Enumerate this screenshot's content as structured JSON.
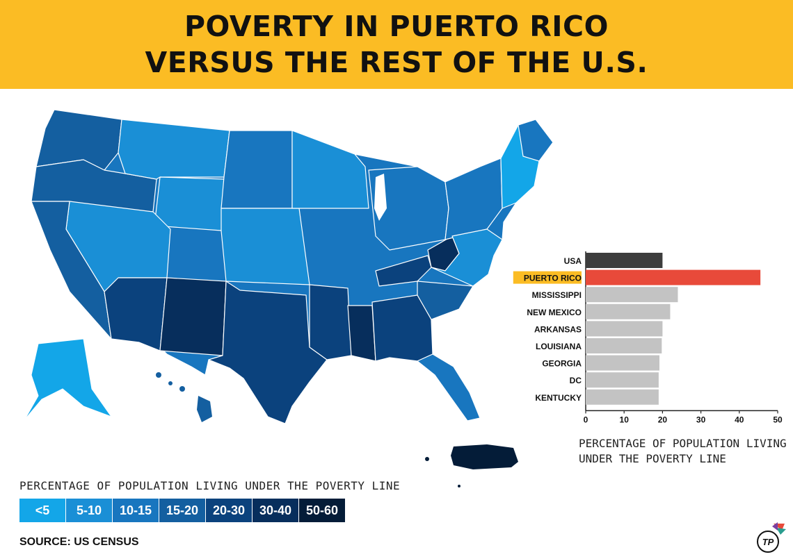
{
  "header": {
    "title_line1": "POVERTY IN PUERTO RICO",
    "title_line2": "VERSUS THE REST OF THE U.S."
  },
  "map": {
    "legend_title": "PERCENTAGE OF POPULATION LIVING UNDER THE POVERTY LINE",
    "legend": [
      {
        "label": "<5",
        "color": "#13a6e8"
      },
      {
        "label": "5-10",
        "color": "#1a8fd6"
      },
      {
        "label": "10-15",
        "color": "#1876bf"
      },
      {
        "label": "15-20",
        "color": "#145fa0"
      },
      {
        "label": "20-30",
        "color": "#0b427d"
      },
      {
        "label": "30-40",
        "color": "#072e5c"
      },
      {
        "label": "50-60",
        "color": "#041c38"
      }
    ]
  },
  "chart_data": {
    "type": "bar",
    "orientation": "horizontal",
    "categories": [
      "USA",
      "PUERTO RICO",
      "MISSISSIPPI",
      "NEW MEXICO",
      "ARKANSAS",
      "LOUISIANA",
      "GEORGIA",
      "DC",
      "KENTUCKY"
    ],
    "values": [
      20,
      45.5,
      24,
      22,
      20,
      19.8,
      19.2,
      19,
      19
    ],
    "colors": [
      "#3d3d3d",
      "#e84a3a",
      "#c3c3c3",
      "#c3c3c3",
      "#c3c3c3",
      "#c3c3c3",
      "#c3c3c3",
      "#c3c3c3",
      "#c3c3c3"
    ],
    "highlight": "PUERTO RICO",
    "highlight_color": "#fbbc24",
    "xlim": [
      0,
      50
    ],
    "xticks": [
      0,
      10,
      20,
      30,
      40,
      50
    ],
    "xlabel_line1": "PERCENTAGE OF POPULATION LIVING",
    "xlabel_line2": "UNDER THE POVERTY LINE"
  },
  "source": "SOURCE: US CENSUS",
  "logo_text": "TP"
}
